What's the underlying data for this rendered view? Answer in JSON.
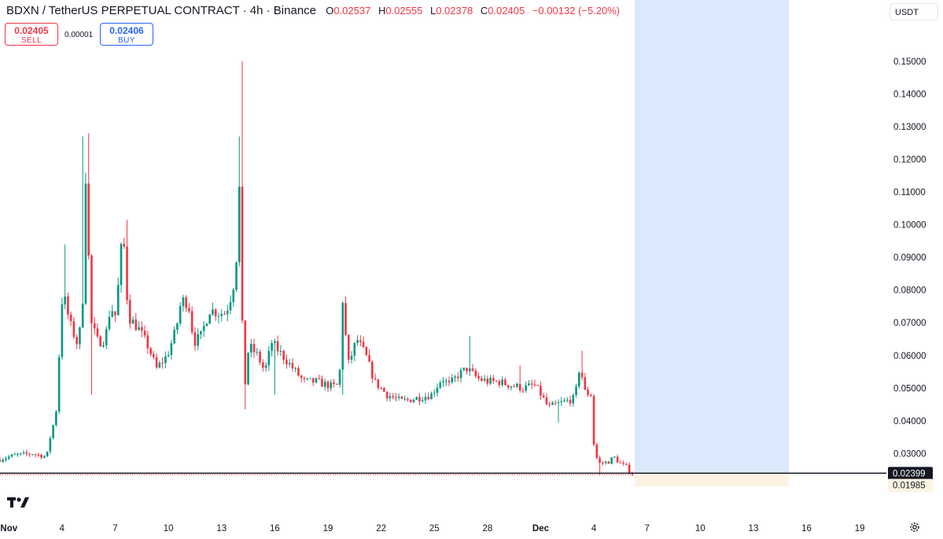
{
  "header": {
    "symbol": "BDXN / TetherUS PERPETUAL CONTRACT · 4h · Binance",
    "ohlc": [
      {
        "key": "O",
        "value": "0.02537"
      },
      {
        "key": "H",
        "value": "0.02555"
      },
      {
        "key": "L",
        "value": "0.02378"
      },
      {
        "key": "C",
        "value": "0.02405"
      },
      {
        "key": "",
        "value": "−0.00132 (−5.20%)"
      }
    ]
  },
  "trade": {
    "sell_price": "0.02405",
    "sell_label": "SELL",
    "spread": "0.00001",
    "buy_price": "0.02406",
    "buy_label": "BUY"
  },
  "currency": "USDT",
  "colors": {
    "up": "#089981",
    "down": "#f23645",
    "forecast_blue": "#dbe9fc",
    "forecast_tan": "#fdf3e2"
  },
  "chart_data": {
    "type": "candlestick",
    "title": "BDXN / TetherUS PERPETUAL CONTRACT · 4h · Binance",
    "interval": "4h",
    "ylim": [
      0.0135,
      0.1615
    ],
    "y_ticks": [
      "0.15000",
      "0.14000",
      "0.13000",
      "0.12000",
      "0.11000",
      "0.10000",
      "0.09000",
      "0.08000",
      "0.07000",
      "0.06000",
      "0.05000",
      "0.04000",
      "0.03000"
    ],
    "x_ticks": [
      "Nov",
      "4",
      "7",
      "10",
      "13",
      "16",
      "19",
      "22",
      "25",
      "28",
      "Dec",
      "4",
      "7",
      "10",
      "13",
      "16",
      "19"
    ],
    "x_tick_days": [
      1,
      4,
      7,
      10,
      13,
      16,
      19,
      22,
      25,
      28,
      31,
      34,
      37,
      40,
      43,
      46,
      49
    ],
    "x_range_days": [
      0.5,
      50.5
    ],
    "last_price_label": "0.02399",
    "last_price": 0.02399,
    "forecast_low_label": "0.01985",
    "forecast_low": 0.01985,
    "forecast_box_days": [
      36.3,
      45.0
    ],
    "forecast_box_top": 0.1615,
    "keypoints": [
      {
        "d": 0.5,
        "p": 0.028
      },
      {
        "d": 1.5,
        "p": 0.0295
      },
      {
        "d": 2.5,
        "p": 0.03
      },
      {
        "d": 3.3,
        "p": 0.029
      },
      {
        "d": 3.6,
        "p": 0.038
      },
      {
        "d": 3.8,
        "p": 0.04
      },
      {
        "d": 4.2,
        "p": 0.08
      },
      {
        "d": 4.6,
        "p": 0.07
      },
      {
        "d": 5.0,
        "p": 0.064
      },
      {
        "d": 5.3,
        "p": 0.07
      },
      {
        "d": 5.5,
        "p": 0.115
      },
      {
        "d": 5.8,
        "p": 0.07
      },
      {
        "d": 6.2,
        "p": 0.064
      },
      {
        "d": 6.6,
        "p": 0.065
      },
      {
        "d": 6.9,
        "p": 0.075
      },
      {
        "d": 7.2,
        "p": 0.072
      },
      {
        "d": 7.6,
        "p": 0.099
      },
      {
        "d": 7.9,
        "p": 0.072
      },
      {
        "d": 8.5,
        "p": 0.068
      },
      {
        "d": 9.0,
        "p": 0.063
      },
      {
        "d": 9.5,
        "p": 0.056
      },
      {
        "d": 10.1,
        "p": 0.06
      },
      {
        "d": 10.6,
        "p": 0.068
      },
      {
        "d": 10.9,
        "p": 0.077
      },
      {
        "d": 11.3,
        "p": 0.076
      },
      {
        "d": 11.6,
        "p": 0.064
      },
      {
        "d": 12.0,
        "p": 0.066
      },
      {
        "d": 12.5,
        "p": 0.074
      },
      {
        "d": 13.0,
        "p": 0.073
      },
      {
        "d": 13.4,
        "p": 0.073
      },
      {
        "d": 13.8,
        "p": 0.08
      },
      {
        "d": 14.0,
        "p": 0.09
      },
      {
        "d": 14.2,
        "p": 0.115
      },
      {
        "d": 14.4,
        "p": 0.046
      },
      {
        "d": 14.7,
        "p": 0.063
      },
      {
        "d": 15.2,
        "p": 0.06
      },
      {
        "d": 15.6,
        "p": 0.055
      },
      {
        "d": 16.0,
        "p": 0.064
      },
      {
        "d": 16.6,
        "p": 0.06
      },
      {
        "d": 17.2,
        "p": 0.056
      },
      {
        "d": 17.8,
        "p": 0.052
      },
      {
        "d": 18.5,
        "p": 0.052
      },
      {
        "d": 19.4,
        "p": 0.0505
      },
      {
        "d": 19.8,
        "p": 0.051
      },
      {
        "d": 20.0,
        "p": 0.077
      },
      {
        "d": 20.3,
        "p": 0.057
      },
      {
        "d": 20.8,
        "p": 0.065
      },
      {
        "d": 21.3,
        "p": 0.06
      },
      {
        "d": 21.8,
        "p": 0.052
      },
      {
        "d": 22.5,
        "p": 0.048
      },
      {
        "d": 23.3,
        "p": 0.046
      },
      {
        "d": 24.2,
        "p": 0.047
      },
      {
        "d": 25.0,
        "p": 0.048
      },
      {
        "d": 25.6,
        "p": 0.053
      },
      {
        "d": 26.0,
        "p": 0.051
      },
      {
        "d": 26.5,
        "p": 0.054
      },
      {
        "d": 27.0,
        "p": 0.056
      },
      {
        "d": 27.6,
        "p": 0.053
      },
      {
        "d": 28.2,
        "p": 0.052
      },
      {
        "d": 28.8,
        "p": 0.052
      },
      {
        "d": 29.4,
        "p": 0.051
      },
      {
        "d": 30.2,
        "p": 0.05
      },
      {
        "d": 30.8,
        "p": 0.051
      },
      {
        "d": 31.2,
        "p": 0.048
      },
      {
        "d": 31.6,
        "p": 0.044
      },
      {
        "d": 32.0,
        "p": 0.045
      },
      {
        "d": 32.6,
        "p": 0.046
      },
      {
        "d": 33.1,
        "p": 0.047
      },
      {
        "d": 33.4,
        "p": 0.058
      },
      {
        "d": 33.6,
        "p": 0.049
      },
      {
        "d": 34.0,
        "p": 0.048
      },
      {
        "d": 34.2,
        "p": 0.03
      },
      {
        "d": 34.5,
        "p": 0.027
      },
      {
        "d": 35.0,
        "p": 0.0275
      },
      {
        "d": 35.3,
        "p": 0.029
      },
      {
        "d": 35.6,
        "p": 0.0272
      },
      {
        "d": 36.0,
        "p": 0.026
      },
      {
        "d": 36.25,
        "p": 0.024
      }
    ],
    "notable_highs": [
      {
        "d": 5.45,
        "p": 0.128
      },
      {
        "d": 5.25,
        "p": 0.127
      },
      {
        "d": 7.65,
        "p": 0.1015
      },
      {
        "d": 14.2,
        "p": 0.15
      },
      {
        "d": 14.05,
        "p": 0.127
      },
      {
        "d": 4.1,
        "p": 0.094
      },
      {
        "d": 20.05,
        "p": 0.078
      },
      {
        "d": 27.0,
        "p": 0.066
      },
      {
        "d": 33.4,
        "p": 0.0615
      },
      {
        "d": 29.8,
        "p": 0.057
      }
    ],
    "notable_lows": [
      {
        "d": 5.6,
        "p": 0.048
      },
      {
        "d": 14.4,
        "p": 0.0435
      },
      {
        "d": 16.0,
        "p": 0.048
      },
      {
        "d": 19.8,
        "p": 0.048
      },
      {
        "d": 32.0,
        "p": 0.0395
      },
      {
        "d": 34.3,
        "p": 0.0235
      }
    ]
  }
}
